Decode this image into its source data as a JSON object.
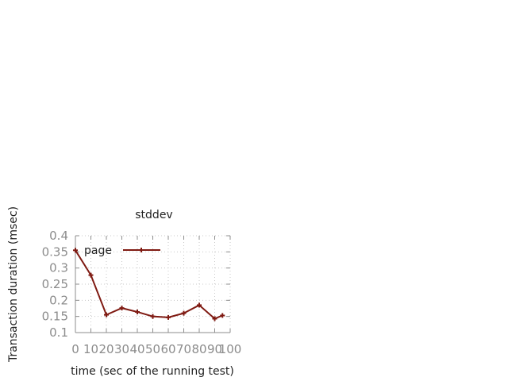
{
  "chart_data": {
    "type": "line",
    "title": "stddev",
    "xlabel": "time (sec of the running test)",
    "ylabel": "Transaction duration (msec)",
    "xlim": [
      0,
      100
    ],
    "ylim": [
      0.1,
      0.4
    ],
    "x_ticks": [
      0,
      10,
      20,
      30,
      40,
      50,
      60,
      70,
      80,
      90,
      100
    ],
    "x_tick_labels": [
      "0",
      "10",
      "20",
      "30",
      "40",
      "50",
      "60",
      "70",
      "80",
      "90",
      "100"
    ],
    "y_ticks": [
      0.1,
      0.15,
      0.2,
      0.25,
      0.3,
      0.35,
      0.4
    ],
    "y_tick_labels": [
      "0.1",
      "0.15",
      "0.2",
      "0.25",
      "0.3",
      "0.35",
      "0.4"
    ],
    "grid": true,
    "legend_position": "top-left",
    "series": [
      {
        "name": "page",
        "color": "#7f1a12",
        "marker": "plus",
        "x": [
          0,
          10,
          20,
          30,
          40,
          50,
          60,
          70,
          80,
          90,
          95
        ],
        "y": [
          0.355,
          0.278,
          0.155,
          0.176,
          0.164,
          0.15,
          0.147,
          0.16,
          0.185,
          0.143,
          0.153
        ]
      }
    ]
  }
}
